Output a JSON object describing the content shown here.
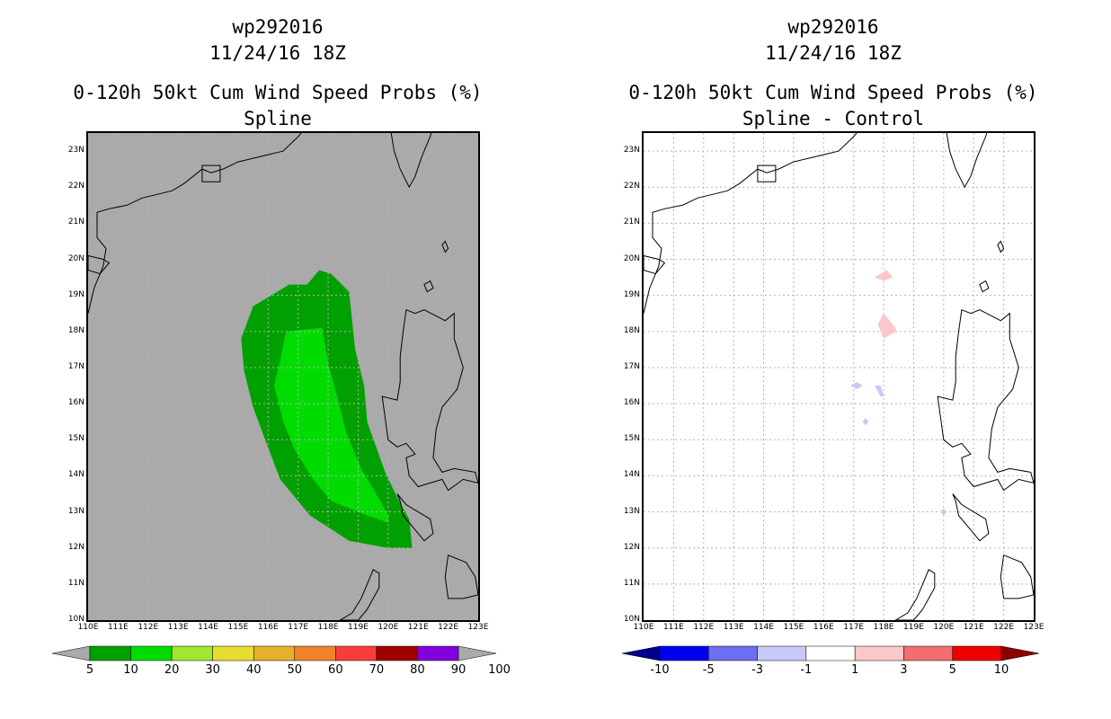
{
  "panels": [
    {
      "id": "left",
      "title_line1": "wp292016",
      "title_line2": "11/24/16 18Z",
      "title_line3": "0-120h 50kt Cum Wind Speed Probs (%)",
      "title_line4": "Spline",
      "background_color": "#aaaaaa",
      "colorbar": {
        "labels": [
          "5",
          "10",
          "20",
          "30",
          "40",
          "50",
          "60",
          "70",
          "80",
          "90",
          "100"
        ],
        "colors": [
          "#00a000",
          "#00dc00",
          "#a0e632",
          "#e6dc32",
          "#e6af2d",
          "#f08228",
          "#fa3c3c",
          "#a00000",
          "#8200dc"
        ],
        "arrow_color": "#aaaaaa"
      }
    },
    {
      "id": "right",
      "title_line1": "wp292016",
      "title_line2": "11/24/16 18Z",
      "title_line3": "0-120h 50kt Cum Wind Speed Probs (%)",
      "title_line4": "Spline - Control",
      "background_color": "#ffffff",
      "colorbar": {
        "labels": [
          "-10",
          "-5",
          "-3",
          "-1",
          "1",
          "3",
          "5",
          "10"
        ],
        "colors": [
          "#0000f0",
          "#6e6ef0",
          "#c8c8fa",
          "#ffffff",
          "#fac8c8",
          "#f06e6e",
          "#f00000"
        ],
        "arrow_left_color": "#00008c",
        "arrow_right_color": "#8c0000"
      }
    }
  ],
  "axes": {
    "lon_labels": [
      "110E",
      "111E",
      "112E",
      "113E",
      "114E",
      "115E",
      "116E",
      "117E",
      "118E",
      "119E",
      "120E",
      "121E",
      "122E",
      "123E"
    ],
    "lat_labels": [
      "10N",
      "11N",
      "12N",
      "13N",
      "14N",
      "15N",
      "16N",
      "17N",
      "18N",
      "19N",
      "20N",
      "21N",
      "22N",
      "23N"
    ],
    "lon_range": [
      110,
      123
    ],
    "lat_range": [
      10,
      23.5
    ]
  },
  "probability_field": {
    "outer_5_10": [
      [
        117.7,
        19.7
      ],
      [
        118.1,
        19.6
      ],
      [
        118.7,
        19.1
      ],
      [
        118.9,
        17.5
      ],
      [
        119.2,
        16.5
      ],
      [
        119.3,
        15.5
      ],
      [
        119.9,
        14.1
      ],
      [
        120.3,
        13.4
      ],
      [
        120.7,
        12.8
      ],
      [
        120.8,
        12.0
      ],
      [
        120.0,
        12.0
      ],
      [
        118.7,
        12.2
      ],
      [
        117.4,
        12.9
      ],
      [
        116.4,
        13.9
      ],
      [
        115.9,
        15.0
      ],
      [
        115.5,
        15.9
      ],
      [
        115.2,
        16.9
      ],
      [
        115.1,
        17.8
      ],
      [
        115.5,
        18.7
      ],
      [
        116.1,
        19.0
      ],
      [
        116.7,
        19.3
      ],
      [
        117.3,
        19.3
      ]
    ],
    "mid_10_20": [
      [
        117.3,
        18.7
      ],
      [
        118.0,
        18.7
      ],
      [
        118.5,
        17.8
      ],
      [
        118.6,
        16.8
      ],
      [
        118.9,
        15.8
      ],
      [
        119.0,
        15.3
      ],
      [
        119.6,
        14.3
      ],
      [
        119.9,
        13.6
      ],
      [
        120.3,
        12.9
      ],
      [
        120.3,
        12.5
      ],
      [
        119.6,
        12.5
      ],
      [
        118.6,
        12.6
      ],
      [
        117.7,
        13.2
      ],
      [
        116.8,
        14.1
      ],
      [
        116.3,
        15.1
      ],
      [
        115.9,
        16.0
      ],
      [
        115.6,
        17.1
      ],
      [
        115.8,
        18.0
      ],
      [
        116.5,
        18.4
      ]
    ],
    "inner_10_20": [
      [
        116.6,
        18.0
      ],
      [
        117.8,
        18.1
      ],
      [
        118.0,
        17.1
      ],
      [
        118.3,
        16.2
      ],
      [
        118.6,
        15.2
      ],
      [
        119.1,
        14.2
      ],
      [
        119.6,
        13.5
      ],
      [
        120.0,
        12.9
      ],
      [
        120.0,
        12.7
      ],
      [
        119.3,
        12.9
      ],
      [
        118.1,
        13.3
      ],
      [
        117.5,
        13.9
      ],
      [
        116.9,
        14.7
      ],
      [
        116.5,
        15.5
      ],
      [
        116.2,
        16.5
      ],
      [
        116.4,
        17.2
      ]
    ]
  },
  "difference_field": {
    "patches": [
      {
        "sign": "positive",
        "points": [
          [
            117.7,
            19.5
          ],
          [
            118.1,
            19.7
          ],
          [
            118.3,
            19.5
          ],
          [
            118.0,
            19.4
          ]
        ]
      },
      {
        "sign": "positive",
        "points": [
          [
            118.0,
            18.5
          ],
          [
            118.4,
            18.1
          ],
          [
            118.4,
            18.0
          ],
          [
            118.0,
            17.8
          ],
          [
            117.8,
            18.2
          ]
        ]
      },
      {
        "sign": "negative",
        "points": [
          [
            116.9,
            16.5
          ],
          [
            117.1,
            16.6
          ],
          [
            117.3,
            16.5
          ],
          [
            117.1,
            16.4
          ]
        ]
      },
      {
        "sign": "negative",
        "points": [
          [
            117.7,
            16.5
          ],
          [
            117.9,
            16.5
          ],
          [
            118.0,
            16.2
          ],
          [
            117.9,
            16.2
          ]
        ]
      },
      {
        "sign": "negative",
        "points": [
          [
            117.4,
            15.6
          ],
          [
            117.5,
            15.5
          ],
          [
            117.4,
            15.4
          ],
          [
            117.3,
            15.5
          ]
        ]
      },
      {
        "sign": "negative",
        "points": [
          [
            119.9,
            13.0
          ],
          [
            120.0,
            13.1
          ],
          [
            120.1,
            13.0
          ],
          [
            120.0,
            12.9
          ]
        ]
      }
    ]
  },
  "coastlines": {
    "china": [
      [
        110.0,
        18.5
      ],
      [
        110.2,
        19.2
      ],
      [
        110.5,
        19.8
      ],
      [
        110.6,
        20.3
      ],
      [
        110.3,
        20.6
      ],
      [
        110.3,
        21.3
      ],
      [
        110.7,
        21.4
      ],
      [
        111.3,
        21.5
      ],
      [
        111.8,
        21.7
      ],
      [
        112.3,
        21.8
      ],
      [
        112.8,
        21.9
      ],
      [
        113.2,
        22.1
      ],
      [
        113.5,
        22.3
      ],
      [
        113.8,
        22.5
      ],
      [
        114.1,
        22.4
      ],
      [
        114.5,
        22.5
      ],
      [
        115.0,
        22.7
      ],
      [
        115.5,
        22.8
      ],
      [
        116.0,
        22.9
      ],
      [
        116.5,
        23.0
      ],
      [
        117.0,
        23.4
      ],
      [
        117.3,
        23.7
      ],
      [
        118.0,
        24.2
      ]
    ],
    "taiwan": [
      [
        120.1,
        24.2
      ],
      [
        120.1,
        23.5
      ],
      [
        120.2,
        23.0
      ],
      [
        120.4,
        22.5
      ],
      [
        120.7,
        22.0
      ],
      [
        120.9,
        22.3
      ],
      [
        121.1,
        22.8
      ],
      [
        121.4,
        23.4
      ],
      [
        121.6,
        24.0
      ]
    ],
    "luzon": [
      [
        120.6,
        18.6
      ],
      [
        120.9,
        18.5
      ],
      [
        121.2,
        18.6
      ],
      [
        121.9,
        18.3
      ],
      [
        122.2,
        18.5
      ],
      [
        122.2,
        17.8
      ],
      [
        122.5,
        17.0
      ],
      [
        122.3,
        16.4
      ],
      [
        121.8,
        15.9
      ],
      [
        121.6,
        15.3
      ],
      [
        121.5,
        14.5
      ],
      [
        121.8,
        14.1
      ],
      [
        122.2,
        14.2
      ],
      [
        122.9,
        14.1
      ],
      [
        123.0,
        13.8
      ],
      [
        122.5,
        13.9
      ],
      [
        122.0,
        13.6
      ],
      [
        121.8,
        13.9
      ],
      [
        121.4,
        13.8
      ],
      [
        121.0,
        13.7
      ],
      [
        120.7,
        14.0
      ],
      [
        120.6,
        14.5
      ],
      [
        120.9,
        14.6
      ],
      [
        120.6,
        14.9
      ],
      [
        120.3,
        14.8
      ],
      [
        120.0,
        15.0
      ],
      [
        119.9,
        15.6
      ],
      [
        119.8,
        16.2
      ],
      [
        120.3,
        16.1
      ],
      [
        120.4,
        16.6
      ],
      [
        120.4,
        17.3
      ],
      [
        120.5,
        18.0
      ]
    ],
    "mindoro": [
      [
        120.3,
        13.5
      ],
      [
        120.6,
        13.2
      ],
      [
        121.0,
        13.0
      ],
      [
        121.4,
        12.8
      ],
      [
        121.5,
        12.4
      ],
      [
        121.2,
        12.2
      ],
      [
        120.9,
        12.5
      ],
      [
        120.5,
        12.9
      ],
      [
        120.4,
        13.3
      ]
    ],
    "palawan": [
      [
        119.5,
        11.4
      ],
      [
        119.3,
        11.0
      ],
      [
        119.1,
        10.6
      ],
      [
        118.8,
        10.2
      ],
      [
        118.4,
        10.0
      ],
      [
        119.0,
        10.0
      ],
      [
        119.3,
        10.3
      ],
      [
        119.7,
        10.9
      ],
      [
        119.7,
        11.3
      ]
    ],
    "panay": [
      [
        122.0,
        11.8
      ],
      [
        122.6,
        11.6
      ],
      [
        122.9,
        11.2
      ],
      [
        123.0,
        10.7
      ],
      [
        122.5,
        10.6
      ],
      [
        122.0,
        10.6
      ],
      [
        121.9,
        11.2
      ]
    ],
    "hainan_north_tip": [
      [
        110.0,
        20.1
      ],
      [
        110.5,
        20.0
      ],
      [
        110.7,
        19.9
      ],
      [
        110.4,
        19.6
      ],
      [
        110.0,
        19.7
      ]
    ],
    "batan_islands": [
      [
        121.8,
        20.4
      ],
      [
        121.9,
        20.5
      ],
      [
        122.0,
        20.3
      ],
      [
        121.9,
        20.2
      ]
    ],
    "babuyan": [
      [
        121.2,
        19.3
      ],
      [
        121.4,
        19.4
      ],
      [
        121.5,
        19.2
      ],
      [
        121.3,
        19.1
      ]
    ],
    "hong_kong_box": [
      [
        113.8,
        22.6
      ],
      [
        114.4,
        22.6
      ],
      [
        114.4,
        22.15
      ],
      [
        113.8,
        22.15
      ]
    ]
  }
}
